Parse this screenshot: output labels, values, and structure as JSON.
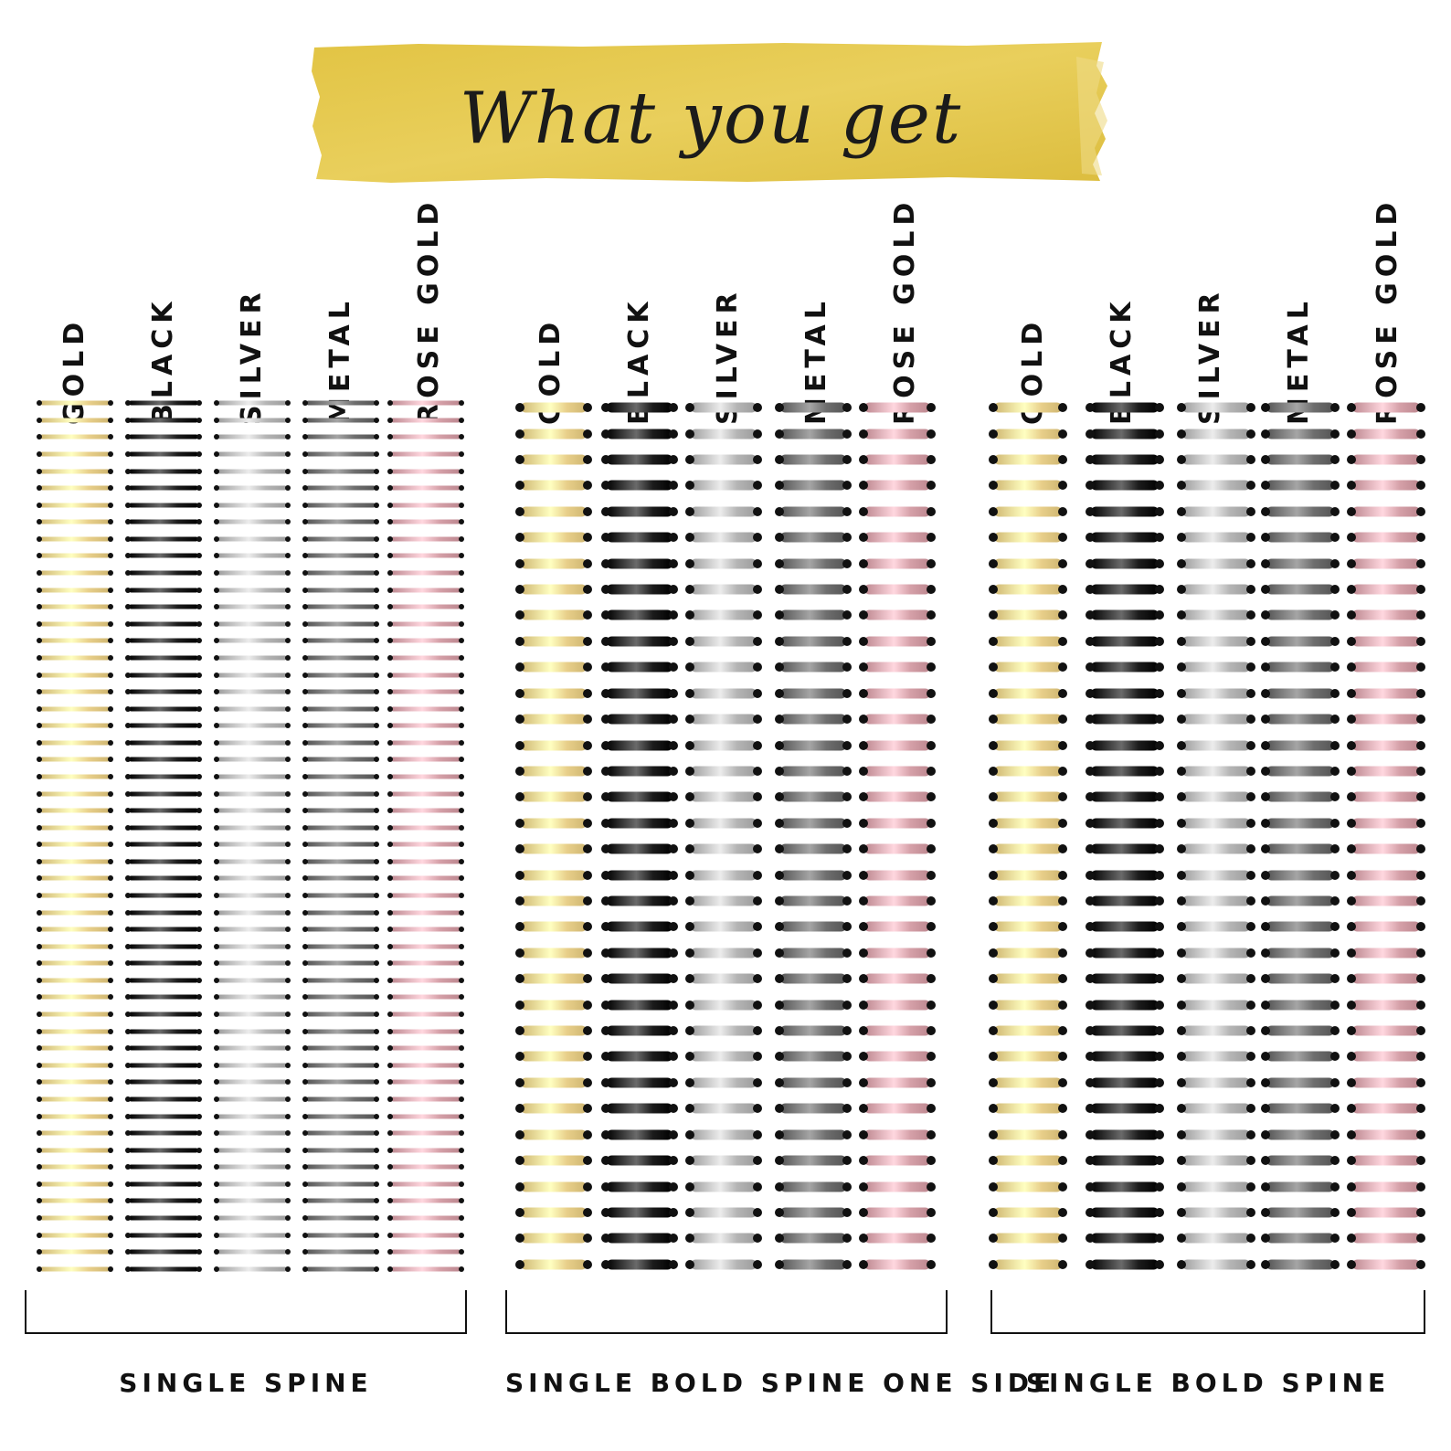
{
  "banner": {
    "title": "What you get",
    "color": "#e6c94f"
  },
  "groups": [
    {
      "label": "SINGLE SPINE",
      "style": "single",
      "rings_per_spine": 52,
      "spines": [
        {
          "label": "GOLD",
          "color": "#e8cf8a",
          "icon": "gold-spiral"
        },
        {
          "label": "BLACK",
          "color": "#1c1c1c",
          "icon": "black-spiral"
        },
        {
          "label": "SILVER",
          "color": "#b5b5b5",
          "icon": "silver-spiral"
        },
        {
          "label": "METAL",
          "color": "#6e6e6e",
          "icon": "metal-spiral"
        },
        {
          "label": "ROSE GOLD",
          "color": "#d5a0a8",
          "icon": "rose-gold-spiral"
        }
      ]
    },
    {
      "label": "SINGLE BOLD SPINE ONE SIDE",
      "style": "bold-one-side",
      "rings_per_spine": 34,
      "spines": [
        {
          "label": "GOLD",
          "color": "#e8cf8a",
          "icon": "gold-spiral"
        },
        {
          "label": "BLACK",
          "color": "#1c1c1c",
          "icon": "black-spiral"
        },
        {
          "label": "SILVER",
          "color": "#b5b5b5",
          "icon": "silver-spiral"
        },
        {
          "label": "METAL",
          "color": "#6e6e6e",
          "icon": "metal-spiral"
        },
        {
          "label": "ROSE GOLD",
          "color": "#d5a0a8",
          "icon": "rose-gold-spiral"
        }
      ]
    },
    {
      "label": "SINGLE BOLD SPINE",
      "style": "bold",
      "rings_per_spine": 34,
      "spines": [
        {
          "label": "GOLD",
          "color": "#e8cf8a",
          "icon": "gold-spiral"
        },
        {
          "label": "BLACK",
          "color": "#1c1c1c",
          "icon": "black-spiral"
        },
        {
          "label": "SILVER",
          "color": "#b5b5b5",
          "icon": "silver-spiral"
        },
        {
          "label": "METAL",
          "color": "#6e6e6e",
          "icon": "metal-spiral"
        },
        {
          "label": "ROSE GOLD",
          "color": "#d5a0a8",
          "icon": "rose-gold-spiral"
        }
      ]
    }
  ]
}
